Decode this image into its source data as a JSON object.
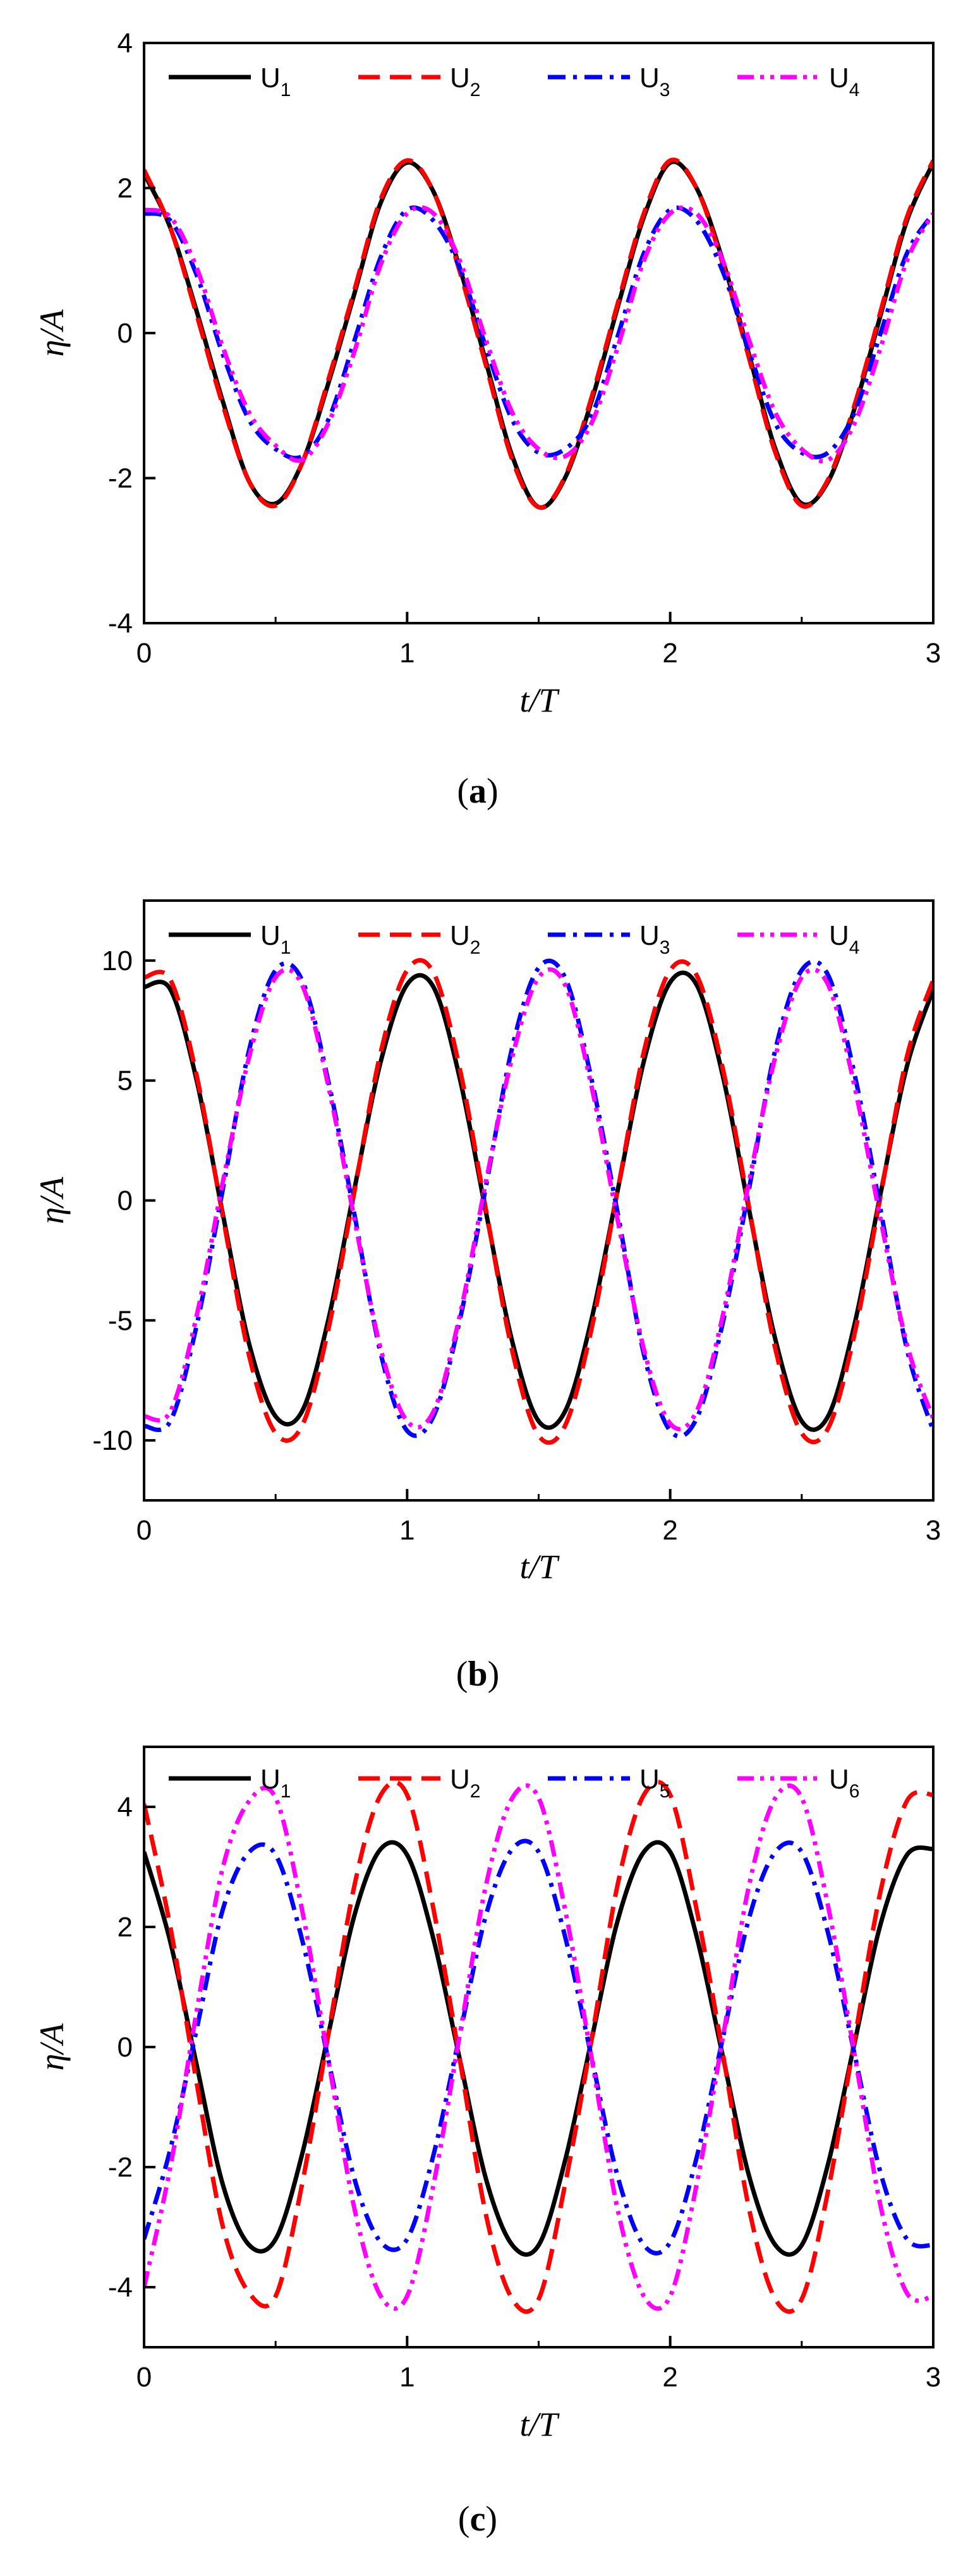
{
  "chart_data": [
    {
      "type": "line",
      "caption_letter": "a",
      "xlabel": "t/T",
      "ylabel": "η/A",
      "xlim": [
        0,
        3
      ],
      "ylim": [
        -4,
        4
      ],
      "xticks": [
        "0",
        "1",
        "2",
        "3"
      ],
      "yticks": [
        "-4",
        "-2",
        "0",
        "2",
        "4"
      ],
      "grid": false,
      "legend_position": "top-right",
      "x": [
        0,
        0.1,
        0.2,
        0.3,
        0.4,
        0.5,
        0.6,
        0.7,
        0.8,
        0.9,
        1.0,
        1.1,
        1.2,
        1.3,
        1.4,
        1.5,
        1.6,
        1.7,
        1.8,
        1.9,
        2.0,
        2.1,
        2.2,
        2.3,
        2.4,
        2.5,
        2.6,
        2.7,
        2.8,
        2.9,
        3.0
      ],
      "series": [
        {
          "name": "U",
          "sub": "1",
          "color": "#000000",
          "dash": "solid",
          "values": [
            2.2,
            1.45,
            0.3,
            -0.95,
            -2.05,
            -2.35,
            -1.8,
            -0.7,
            0.55,
            1.8,
            2.35,
            1.95,
            0.9,
            -0.4,
            -1.7,
            -2.4,
            -2.0,
            -0.95,
            0.35,
            1.6,
            2.35,
            2.0,
            1.0,
            -0.3,
            -1.6,
            -2.35,
            -2.05,
            -1.05,
            0.25,
            1.55,
            2.35
          ]
        },
        {
          "name": "U",
          "sub": "2",
          "color": "#ff0000",
          "dash": "dash",
          "values": [
            2.25,
            1.45,
            0.25,
            -1.0,
            -2.05,
            -2.38,
            -1.8,
            -0.65,
            0.6,
            1.85,
            2.38,
            1.95,
            0.85,
            -0.45,
            -1.75,
            -2.4,
            -1.98,
            -0.9,
            0.4,
            1.65,
            2.38,
            2.0,
            0.95,
            -0.35,
            -1.65,
            -2.38,
            -2.02,
            -1.0,
            0.3,
            1.6,
            2.38
          ]
        },
        {
          "name": "U",
          "sub": "3",
          "color": "#0000ff",
          "dash": "dashdot",
          "values": [
            1.65,
            1.55,
            0.8,
            -0.3,
            -1.2,
            -1.6,
            -1.7,
            -1.2,
            -0.1,
            1.05,
            1.7,
            1.55,
            0.9,
            -0.2,
            -1.2,
            -1.65,
            -1.6,
            -1.15,
            -0.05,
            1.1,
            1.7,
            1.55,
            0.85,
            -0.25,
            -1.25,
            -1.65,
            -1.65,
            -1.1,
            0.0,
            1.1,
            1.65
          ]
        },
        {
          "name": "U",
          "sub": "4",
          "color": "#ff00ff",
          "dash": "dashdotdot",
          "values": [
            1.7,
            1.6,
            0.9,
            -0.2,
            -1.1,
            -1.55,
            -1.75,
            -1.25,
            -0.25,
            0.95,
            1.65,
            1.65,
            1.0,
            -0.1,
            -1.1,
            -1.6,
            -1.7,
            -1.25,
            -0.2,
            1.0,
            1.65,
            1.65,
            1.0,
            -0.1,
            -1.1,
            -1.6,
            -1.75,
            -1.25,
            -0.2,
            1.0,
            1.65
          ]
        }
      ]
    },
    {
      "type": "line",
      "caption_letter": "b",
      "xlabel": "t/T",
      "ylabel": "η/A",
      "xlim": [
        0,
        3
      ],
      "ylim": [
        -12.5,
        12.5
      ],
      "xticks": [
        "0",
        "1",
        "2",
        "3"
      ],
      "yticks": [
        "-10",
        "-5",
        "0",
        "5",
        "10"
      ],
      "grid": false,
      "legend_position": "top-right",
      "x": [
        0,
        0.1,
        0.2,
        0.3,
        0.4,
        0.5,
        0.6,
        0.7,
        0.8,
        0.9,
        1.0,
        1.1,
        1.2,
        1.3,
        1.4,
        1.5,
        1.6,
        1.7,
        1.8,
        1.9,
        2.0,
        2.1,
        2.2,
        2.3,
        2.4,
        2.5,
        2.6,
        2.7,
        2.8,
        2.9,
        3.0
      ],
      "series": [
        {
          "name": "U",
          "sub": "1",
          "color": "#000000",
          "dash": "solid",
          "values": [
            8.9,
            8.8,
            5.0,
            -0.6,
            -6.0,
            -9.0,
            -8.8,
            -5.0,
            0.5,
            5.8,
            9.0,
            8.9,
            5.1,
            -0.5,
            -5.9,
            -9.2,
            -8.8,
            -5.0,
            0.4,
            5.8,
            9.1,
            9.0,
            5.2,
            -0.4,
            -5.8,
            -9.2,
            -9.0,
            -5.2,
            0.3,
            5.6,
            8.8
          ]
        },
        {
          "name": "U",
          "sub": "2",
          "color": "#ff0000",
          "dash": "dash",
          "values": [
            9.3,
            9.2,
            5.2,
            -0.7,
            -6.5,
            -9.7,
            -9.4,
            -5.4,
            0.4,
            6.2,
            9.6,
            9.5,
            5.5,
            -0.4,
            -6.3,
            -9.8,
            -9.4,
            -5.4,
            0.4,
            6.2,
            9.6,
            9.4,
            5.5,
            -0.3,
            -6.2,
            -9.7,
            -9.5,
            -5.6,
            0.2,
            6.0,
            9.2
          ]
        },
        {
          "name": "U",
          "sub": "3",
          "color": "#0000ff",
          "dash": "dashdot",
          "values": [
            -9.4,
            -9.2,
            -5.2,
            0.5,
            6.3,
            9.6,
            9.2,
            5.0,
            -0.6,
            -6.4,
            -9.6,
            -9.0,
            -5.0,
            0.6,
            6.4,
            9.7,
            9.3,
            5.1,
            -0.5,
            -6.4,
            -9.6,
            -9.1,
            -5.1,
            0.5,
            6.3,
            9.6,
            9.4,
            5.3,
            -0.4,
            -6.2,
            -9.6
          ]
        },
        {
          "name": "U",
          "sub": "4",
          "color": "#ff00ff",
          "dash": "dashdotdot",
          "values": [
            -9.0,
            -8.8,
            -4.8,
            0.8,
            6.0,
            9.3,
            9.0,
            4.8,
            -0.8,
            -6.2,
            -9.2,
            -8.8,
            -4.8,
            0.8,
            6.0,
            9.3,
            9.0,
            4.8,
            -0.8,
            -6.2,
            -9.3,
            -8.8,
            -4.8,
            0.8,
            6.0,
            9.3,
            9.0,
            4.8,
            -0.8,
            -6.0,
            -9.1
          ]
        }
      ]
    },
    {
      "type": "line",
      "caption_letter": "c",
      "xlabel": "t/T",
      "ylabel": "η/A",
      "xlim": [
        0,
        3
      ],
      "ylim": [
        -5,
        5
      ],
      "xticks": [
        "0",
        "1",
        "2",
        "3"
      ],
      "yticks": [
        "-4",
        "-2",
        "0",
        "2",
        "4"
      ],
      "grid": false,
      "legend_position": "top-right",
      "x": [
        0,
        0.1,
        0.2,
        0.3,
        0.4,
        0.5,
        0.6,
        0.7,
        0.8,
        0.9,
        1.0,
        1.1,
        1.2,
        1.3,
        1.4,
        1.5,
        1.6,
        1.7,
        1.8,
        1.9,
        2.0,
        2.1,
        2.2,
        2.3,
        2.4,
        2.5,
        2.6,
        2.7,
        2.8,
        2.9,
        3.0
      ],
      "series": [
        {
          "name": "U",
          "sub": "1",
          "color": "#000000",
          "dash": "solid",
          "values": [
            3.25,
            1.75,
            -0.3,
            -2.3,
            -3.3,
            -3.2,
            -1.8,
            0.2,
            2.2,
            3.3,
            3.2,
            1.8,
            -0.2,
            -2.2,
            -3.3,
            -3.3,
            -1.9,
            0.1,
            2.1,
            3.25,
            3.25,
            1.85,
            -0.15,
            -2.15,
            -3.3,
            -3.3,
            -1.95,
            0.05,
            2.05,
            3.2,
            3.3
          ]
        },
        {
          "name": "U",
          "sub": "2",
          "color": "#ff0000",
          "dash": "dash",
          "values": [
            4.05,
            2.0,
            -0.6,
            -3.0,
            -4.1,
            -4.15,
            -2.3,
            0.2,
            2.7,
            4.2,
            4.2,
            2.3,
            -0.2,
            -2.8,
            -4.2,
            -4.2,
            -2.3,
            0.1,
            2.7,
            4.2,
            4.2,
            2.3,
            -0.1,
            -2.7,
            -4.2,
            -4.2,
            -2.4,
            0.1,
            2.6,
            4.1,
            4.2
          ]
        },
        {
          "name": "U",
          "sub": "5",
          "color": "#0000ff",
          "dash": "dashdot",
          "values": [
            -3.2,
            -1.7,
            0.3,
            2.3,
            3.25,
            3.2,
            1.8,
            -0.2,
            -2.2,
            -3.25,
            -3.2,
            -1.8,
            0.2,
            2.2,
            3.3,
            3.25,
            1.85,
            -0.15,
            -2.15,
            -3.3,
            -3.25,
            -1.85,
            0.15,
            2.15,
            3.25,
            3.25,
            1.9,
            -0.1,
            -2.1,
            -3.2,
            -3.3
          ]
        },
        {
          "name": "U",
          "sub": "6",
          "color": "#ff00ff",
          "dash": "dashdotdot",
          "values": [
            -4.0,
            -2.0,
            0.6,
            3.0,
            4.1,
            4.15,
            2.3,
            -0.2,
            -2.7,
            -4.15,
            -4.15,
            -2.3,
            0.2,
            2.7,
            4.15,
            4.15,
            2.3,
            -0.15,
            -2.7,
            -4.15,
            -4.15,
            -2.3,
            0.15,
            2.7,
            4.15,
            4.15,
            2.35,
            -0.1,
            -2.65,
            -4.1,
            -4.15
          ]
        }
      ]
    }
  ]
}
